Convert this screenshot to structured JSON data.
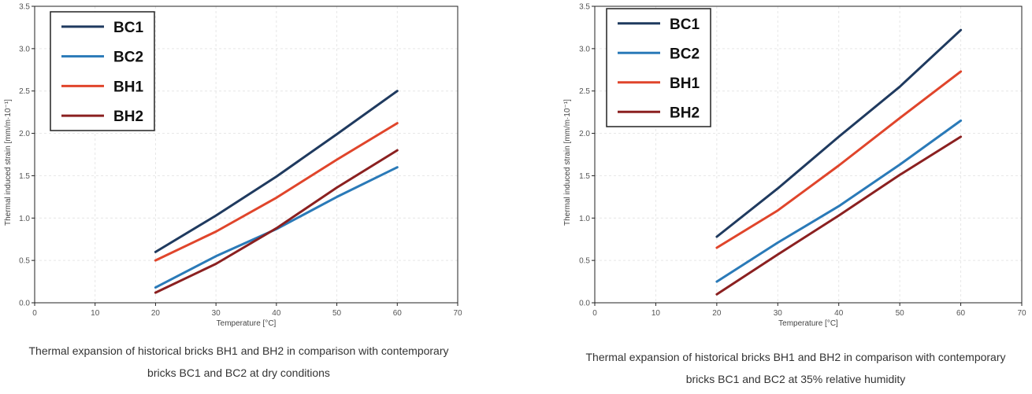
{
  "chart_data": [
    {
      "type": "line",
      "xlabel": "Temperature [°C]",
      "ylabel": "Thermal induced strain [mm/m·10⁻¹]",
      "xlim": [
        0,
        70
      ],
      "ylim": [
        0,
        3.5
      ],
      "xticks": [
        0,
        10,
        20,
        30,
        40,
        50,
        60,
        70
      ],
      "xtick_labels": [
        "0",
        "10",
        "20",
        "30",
        "40",
        "50",
        "60",
        "70"
      ],
      "yticks": [
        0,
        0.5,
        1.0,
        1.5,
        2.0,
        2.5,
        3.0,
        3.5
      ],
      "ytick_labels": [
        "0.0",
        "0.5",
        "1.0",
        "1.5",
        "2.0",
        "2.5",
        "3.0",
        "3.5"
      ],
      "grid": true,
      "legend_position": "top-left",
      "x": [
        20,
        30,
        40,
        50,
        60
      ],
      "series": [
        {
          "name": "BC1",
          "color": "#1f3a5f",
          "values": [
            0.6,
            1.03,
            1.49,
            1.99,
            2.5
          ]
        },
        {
          "name": "BC2",
          "color": "#2a7ab8",
          "values": [
            0.18,
            0.55,
            0.87,
            1.25,
            1.6
          ]
        },
        {
          "name": "BH1",
          "color": "#e0452b",
          "values": [
            0.5,
            0.84,
            1.24,
            1.69,
            2.12
          ]
        },
        {
          "name": "BH2",
          "color": "#8b2020",
          "values": [
            0.12,
            0.46,
            0.88,
            1.36,
            1.8
          ]
        }
      ],
      "caption": {
        "line1": "Thermal expansion of historical bricks BH1 and BH2 in comparison with contemporary",
        "line2": "bricks BC1 and BC2 at dry conditions"
      }
    },
    {
      "type": "line",
      "xlabel": "Temperature [°C]",
      "ylabel": "Thermal induced strain [mm/m·10⁻¹]",
      "xlim": [
        0,
        70
      ],
      "ylim": [
        0,
        3.5
      ],
      "xticks": [
        0,
        10,
        20,
        30,
        40,
        50,
        60,
        70
      ],
      "xtick_labels": [
        "0",
        "10",
        "20",
        "30",
        "40",
        "50",
        "60",
        "70"
      ],
      "yticks": [
        0,
        0.5,
        1.0,
        1.5,
        2.0,
        2.5,
        3.0,
        3.5
      ],
      "ytick_labels": [
        "0.0",
        "0.5",
        "1.0",
        "1.5",
        "2.0",
        "2.5",
        "3.0",
        "3.5"
      ],
      "grid": true,
      "legend_position": "top-left",
      "x": [
        20,
        30,
        40,
        50,
        60
      ],
      "series": [
        {
          "name": "BC1",
          "color": "#1f3a5f",
          "values": [
            0.78,
            1.35,
            1.96,
            2.55,
            3.22
          ]
        },
        {
          "name": "BC2",
          "color": "#2a7ab8",
          "values": [
            0.25,
            0.71,
            1.14,
            1.63,
            2.15
          ]
        },
        {
          "name": "BH1",
          "color": "#e0452b",
          "values": [
            0.65,
            1.09,
            1.62,
            2.18,
            2.73
          ]
        },
        {
          "name": "BH2",
          "color": "#8b2020",
          "values": [
            0.1,
            0.57,
            1.03,
            1.51,
            1.96
          ]
        }
      ],
      "caption": {
        "line1": "Thermal expansion of historical bricks BH1 and BH2 in comparison with contemporary",
        "line2": "bricks BC1 and BC2 at 35% relative humidity"
      }
    }
  ]
}
